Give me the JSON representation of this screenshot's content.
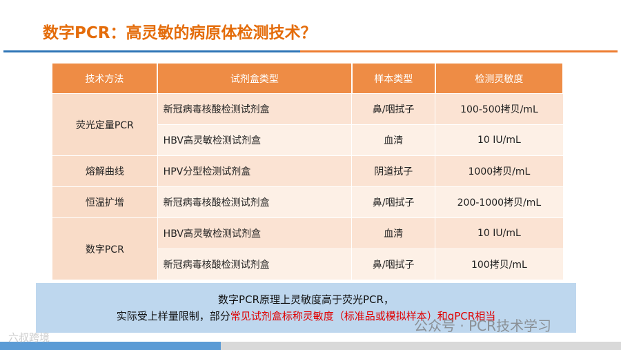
{
  "header": {
    "title": "数字PCR：高灵敏的病原体检测技术？"
  },
  "table": {
    "columns": [
      "技术方法",
      "试剂盒类型",
      "样本类型",
      "检测灵敏度"
    ],
    "groups": [
      {
        "method": "荧光定量PCR",
        "rows": [
          [
            "新冠病毒核酸检测试剂盒",
            "鼻/咽拭子",
            "100-500拷贝/mL"
          ],
          [
            "HBV高灵敏检测试剂盒",
            "血清",
            "10 IU/mL"
          ]
        ]
      },
      {
        "method": "熔解曲线",
        "rows": [
          [
            "HPV分型检测试剂盒",
            "阴道拭子",
            "1000拷贝/mL"
          ]
        ]
      },
      {
        "method": "恒温扩增",
        "rows": [
          [
            "新冠病毒核酸检测试剂盒",
            "鼻/咽拭子",
            "200-1000拷贝/mL"
          ]
        ]
      },
      {
        "method": "数字PCR",
        "rows": [
          [
            "HBV高灵敏检测试剂盒",
            "血清",
            "10 IU/mL"
          ],
          [
            "新冠病毒核酸检测试剂盒",
            "鼻/咽拭子",
            "100拷贝/mL"
          ]
        ]
      }
    ]
  },
  "note": {
    "line1": "数字PCR原理上灵敏度高于荧光PCR，",
    "line2_plain": "实际受上样量限制，部分",
    "line2_highlight": "常见试剂盒标称灵敏度（标准品或模拟样本）和qPCR相当"
  },
  "watermarks": [
    "公众号 · PCR技术学习",
    "六叔跨境"
  ]
}
